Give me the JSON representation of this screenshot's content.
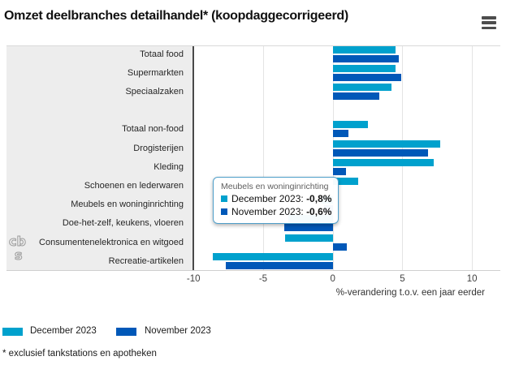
{
  "header": {
    "title": "Omzet deelbranches detailhandel* (koopdaggecorrigeerd)",
    "menu_icon": "hamburger-icon"
  },
  "chart_data": {
    "type": "bar",
    "orientation": "horizontal",
    "title": "Omzet deelbranches detailhandel* (koopdaggecorrigeerd)",
    "categories": [
      "Totaal food",
      "Supermarkten",
      "Speciaalzaken",
      "Totaal non-food",
      "Drogisterijen",
      "Kleding",
      "Schoenen en lederwaren",
      "Meubels en woninginrichting",
      "Doe-het-zelf, keukens, vloeren",
      "Consumentenelektronica en witgoed",
      "Recreatie-artikelen"
    ],
    "series": [
      {
        "name": "December 2023",
        "color": "#00a1cd",
        "values": [
          4.5,
          4.5,
          4.2,
          2.5,
          7.7,
          7.2,
          1.8,
          -0.8,
          -3.2,
          -3.4,
          -8.6
        ]
      },
      {
        "name": "November 2023",
        "color": "#0058b8",
        "values": [
          4.7,
          4.9,
          3.3,
          1.1,
          6.8,
          0.9,
          null,
          -0.6,
          -3.5,
          1.0,
          -7.7
        ]
      }
    ],
    "group_gap_after_index": 2,
    "xticks": [
      -10,
      -5,
      0,
      5,
      10
    ],
    "xlim": [
      -10,
      12
    ],
    "xlabel": "%-verandering t.o.v. een jaar eerder",
    "grid": true,
    "legend_position": "bottom-left"
  },
  "tooltip": {
    "category": "Meubels en woninginrichting",
    "rows": [
      {
        "label": "December 2023: ",
        "value": "-0,8%"
      },
      {
        "label": "November 2023: ",
        "value": "-0,6%"
      }
    ]
  },
  "legend": {
    "items": [
      {
        "label": "December 2023",
        "color": "#00a1cd"
      },
      {
        "label": "November 2023",
        "color": "#0058b8"
      }
    ]
  },
  "footnote": "* exclusief tankstations en apotheken",
  "logo": {
    "name": "cbs",
    "lines": [
      "cb",
      "s"
    ]
  }
}
